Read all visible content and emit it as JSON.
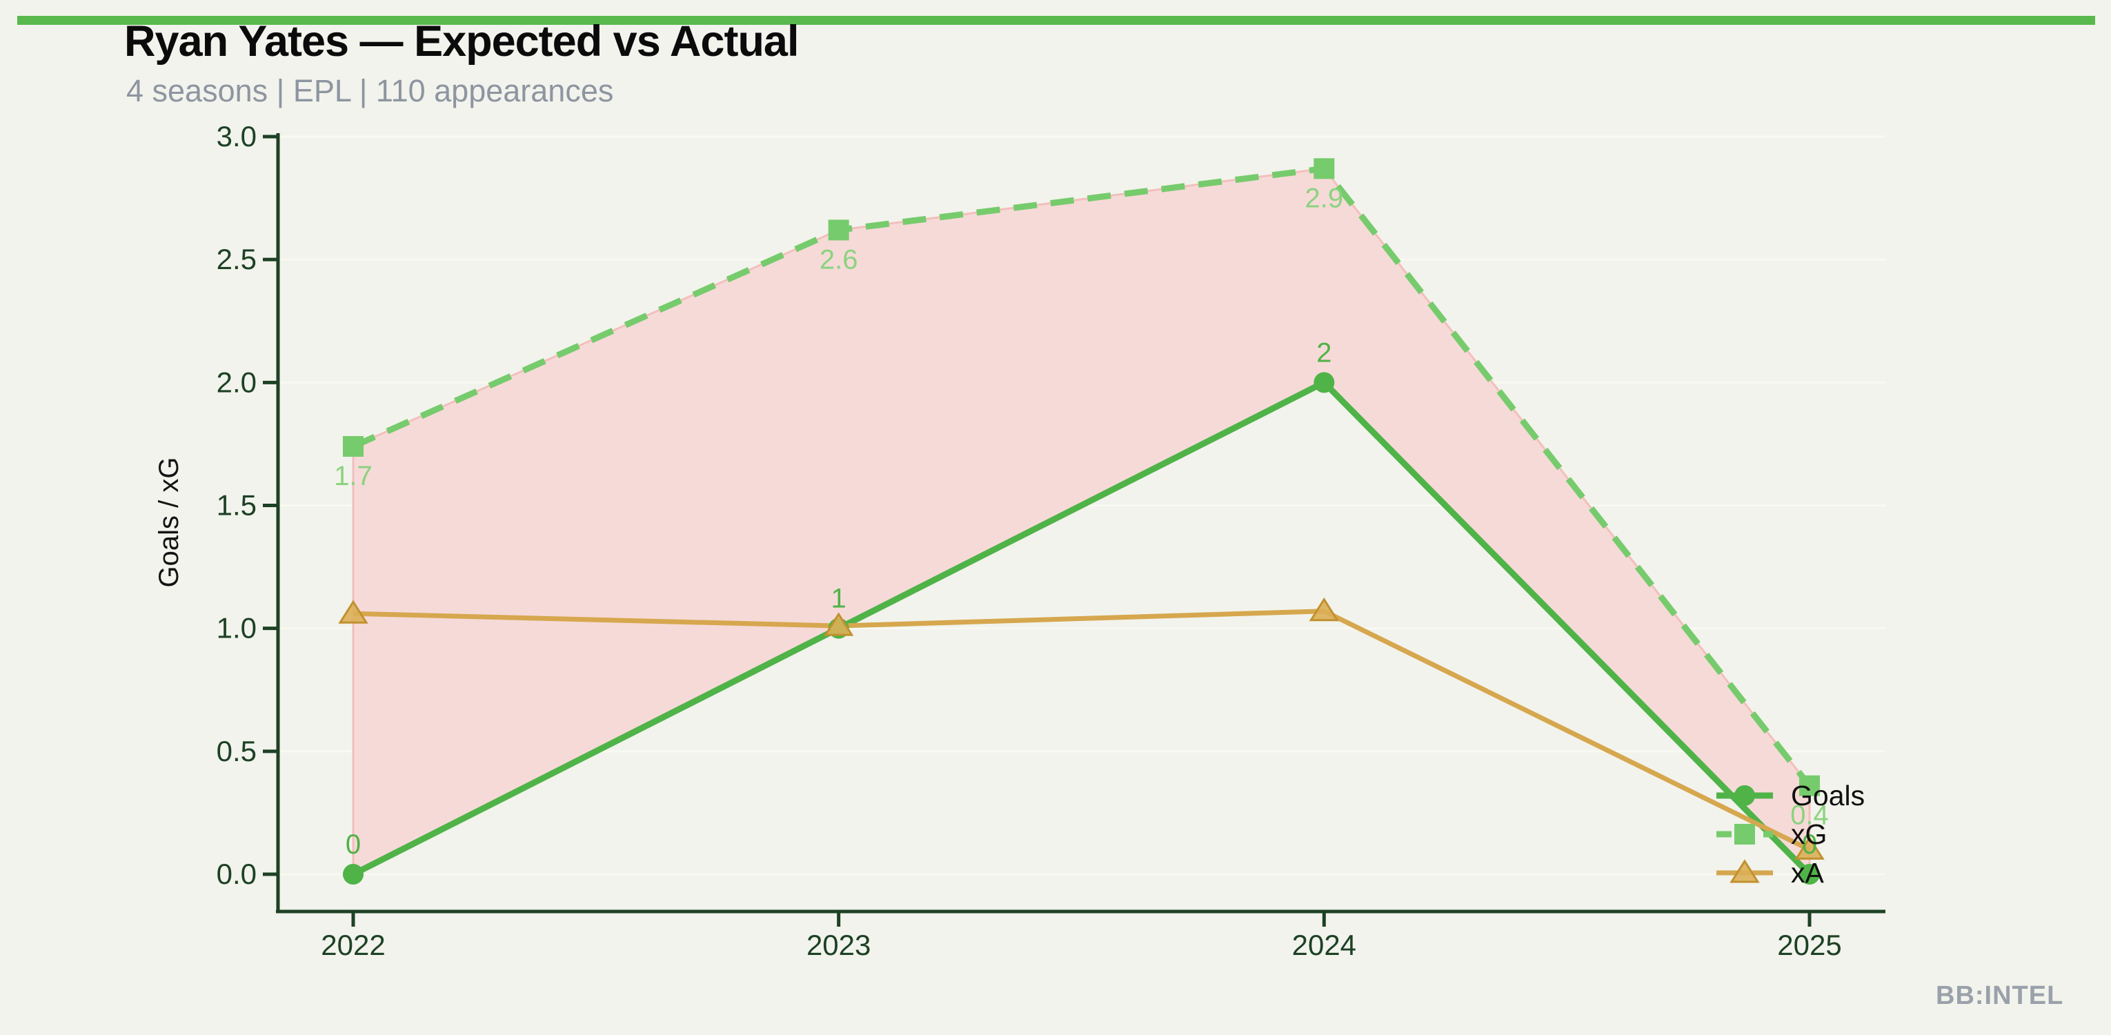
{
  "page": {
    "title": "Ryan Yates — Expected vs Actual",
    "subtitle": "4 seasons | EPL | 110 appearances",
    "watermark": "BB:INTEL"
  },
  "colors": {
    "background": "#f2f3ec",
    "topbar": "#59b84e",
    "title": "#0b0b0b",
    "subtitle": "#8e95a1",
    "watermark": "#9aa1ab",
    "axis": "#1d4125",
    "grid": "#f8f9f1",
    "legend_text": "#101010",
    "ylabel_text": "#141414"
  },
  "chart_data": {
    "type": "line",
    "title": "Ryan Yates — Expected vs Actual",
    "subtitle": "4 seasons | EPL | 110 appearances",
    "categories": [
      "2022",
      "2023",
      "2024",
      "2025"
    ],
    "xlabel": "",
    "ylabel": "Goals / xG",
    "ylim": [
      0,
      3
    ],
    "yticks": [
      {
        "v": 0.0,
        "label": "0.0"
      },
      {
        "v": 0.5,
        "label": "0.5"
      },
      {
        "v": 1.0,
        "label": "1.0"
      },
      {
        "v": 1.5,
        "label": "1.5"
      },
      {
        "v": 2.0,
        "label": "2.0"
      },
      {
        "v": 2.5,
        "label": "2.5"
      },
      {
        "v": 3.0,
        "label": "3.0"
      }
    ],
    "grid": true,
    "legend_position": "lower right",
    "series": [
      {
        "name": "Goals",
        "marker": "circle",
        "dash": false,
        "width": 9,
        "color": "#4fb348",
        "label_color": "#4fb348",
        "values": [
          0,
          1,
          2,
          0
        ],
        "point_labels": [
          "0",
          "1",
          "2",
          "0"
        ],
        "label_side": "above"
      },
      {
        "name": "xG",
        "marker": "square",
        "dash": true,
        "width": 9,
        "color": "#76cb6c",
        "label_color": "#8bd37f",
        "values": [
          1.74,
          2.62,
          2.87,
          0.36
        ],
        "point_labels": [
          "1.7",
          "2.6",
          "2.9",
          "0.4"
        ],
        "label_side": "below"
      },
      {
        "name": "xA",
        "marker": "triangle",
        "dash": false,
        "width": 7,
        "color": "#d6a74e",
        "marker_fill": "#dcaf58",
        "marker_edge": "#c1912f",
        "values": [
          1.06,
          1.01,
          1.07,
          0.1
        ],
        "point_labels": null,
        "label_side": null
      }
    ],
    "fill_between": {
      "upper": "xG",
      "lower": "Goals",
      "color": "#f6dad8",
      "edge": "#f2bfbc"
    }
  }
}
